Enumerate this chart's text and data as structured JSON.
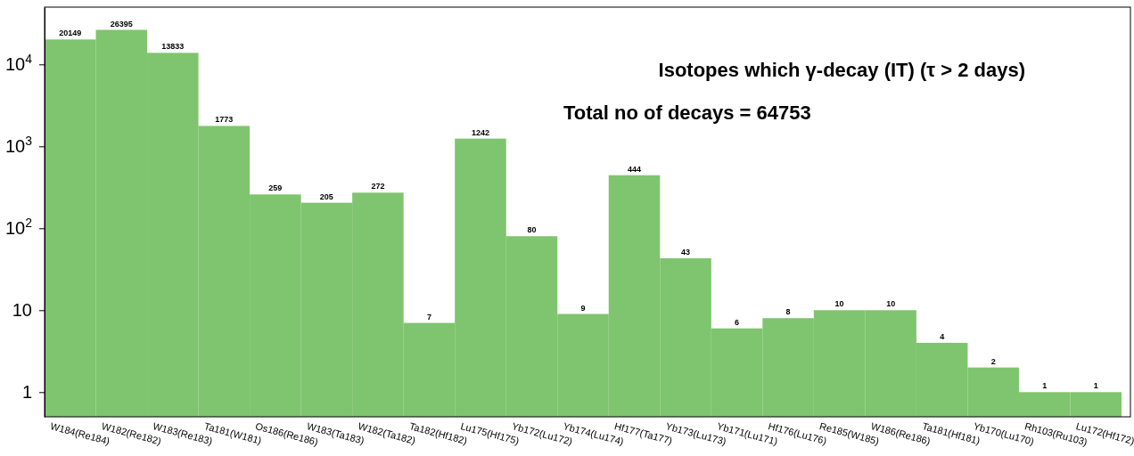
{
  "chart_data": {
    "type": "bar",
    "title": "Isotopes which γ-decay (IT) (τ > 2 days)",
    "subtitle": "Total no of decays = 64753",
    "categories": [
      "W184(Re184)",
      "W182(Re182)",
      "W183(Re183)",
      "Ta181(W181)",
      "Os186(Re186)",
      "W183(Ta183)",
      "W182(Ta182)",
      "Ta182(Hf182)",
      "Lu175(Hf175)",
      "Yb172(Lu172)",
      "Yb174(Lu174)",
      "Hf177(Ta177)",
      "Yb173(Lu173)",
      "Yb171(Lu171)",
      "Hf176(Lu176)",
      "Re185(W185)",
      "W186(Re186)",
      "Ta181(Hf181)",
      "Yb170(Lu170)",
      "Rh103(Ru103)",
      "Lu172(Hf172)"
    ],
    "values": [
      20149,
      26395,
      13833,
      1773,
      259,
      205,
      272,
      7,
      1242,
      80,
      9,
      444,
      43,
      6,
      8,
      10,
      10,
      4,
      2,
      1,
      1
    ],
    "color": "#7fc46e",
    "data_labels": true,
    "log": true,
    "ylim": [
      0.5,
      50000
    ],
    "yticks": [
      1,
      10,
      {
        "value": 100,
        "label": "10$^{2}$"
      },
      {
        "value": 1000,
        "label": "10$^{3}$"
      },
      {
        "value": 10000,
        "label": "10$^{4}$"
      }
    ],
    "grid": false
  }
}
